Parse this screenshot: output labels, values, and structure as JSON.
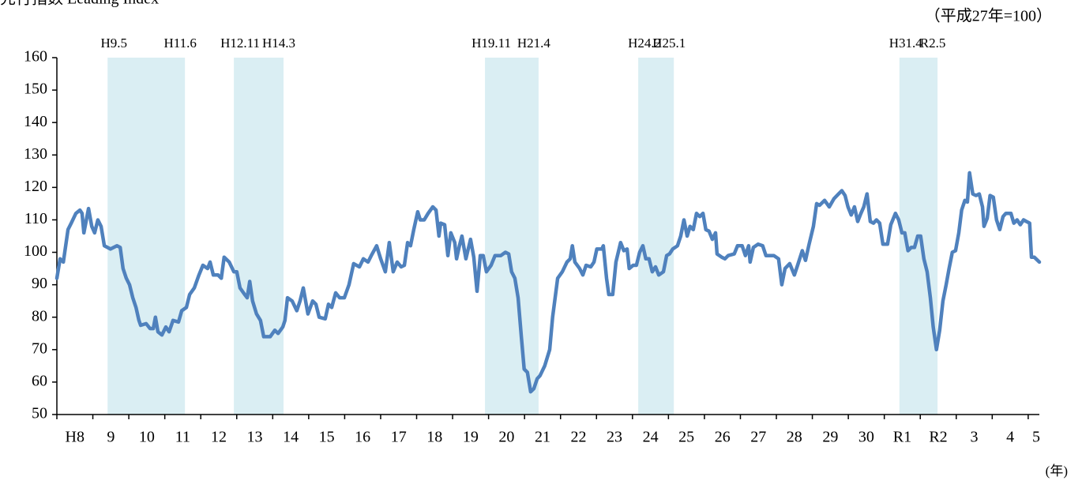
{
  "chart_data": {
    "type": "line",
    "title": "先行指数 Leading Index",
    "unit_label": "（平成27年=100）",
    "x_axis_label": "(年)",
    "color": "#4f81bd",
    "shade_color": "#daeef3",
    "xlim": [
      1996,
      2023.31
    ],
    "xticks": [
      {
        "value": 1996,
        "label": "H8"
      },
      {
        "value": 1997,
        "label": "9"
      },
      {
        "value": 1998,
        "label": "10"
      },
      {
        "value": 1999,
        "label": "11"
      },
      {
        "value": 2000,
        "label": "12"
      },
      {
        "value": 2001,
        "label": "13"
      },
      {
        "value": 2002,
        "label": "14"
      },
      {
        "value": 2003,
        "label": "15"
      },
      {
        "value": 2004,
        "label": "16"
      },
      {
        "value": 2005,
        "label": "17"
      },
      {
        "value": 2006,
        "label": "18"
      },
      {
        "value": 2007,
        "label": "19"
      },
      {
        "value": 2008,
        "label": "20"
      },
      {
        "value": 2009,
        "label": "21"
      },
      {
        "value": 2010,
        "label": "22"
      },
      {
        "value": 2011,
        "label": "23"
      },
      {
        "value": 2012,
        "label": "24"
      },
      {
        "value": 2013,
        "label": "25"
      },
      {
        "value": 2014,
        "label": "26"
      },
      {
        "value": 2015,
        "label": "27"
      },
      {
        "value": 2016,
        "label": "28"
      },
      {
        "value": 2017,
        "label": "29"
      },
      {
        "value": 2018,
        "label": "30"
      },
      {
        "value": 2019,
        "label": "R1"
      },
      {
        "value": 2020,
        "label": "R2"
      },
      {
        "value": 2021,
        "label": "3"
      },
      {
        "value": 2022,
        "label": "4"
      },
      {
        "value": 2023,
        "label": "5"
      }
    ],
    "ylim": [
      50,
      160
    ],
    "yticks": [
      50,
      60,
      70,
      80,
      90,
      100,
      110,
      120,
      130,
      140,
      150,
      160
    ],
    "shading": [
      {
        "start": 1997.41,
        "end": 1999.56,
        "start_label": "H9.5",
        "end_label": "H11.6"
      },
      {
        "start": 2000.92,
        "end": 2002.3,
        "start_label": "H12.11",
        "end_label": "H14.3"
      },
      {
        "start": 2007.9,
        "end": 2009.39,
        "start_label": "H19.11",
        "end_label": "H21.4"
      },
      {
        "start": 2012.16,
        "end": 2013.15,
        "start_label": "H24.2",
        "end_label": "H25.1"
      },
      {
        "start": 2019.42,
        "end": 2020.48,
        "start_label": "H31.4",
        "end_label": "R2.5"
      }
    ],
    "x": [
      1996.0,
      1996.09,
      1996.18,
      1996.31,
      1996.4,
      1996.53,
      1996.64,
      1996.7,
      1996.75,
      1996.88,
      1996.97,
      1997.05,
      1997.14,
      1997.23,
      1997.32,
      1997.49,
      1997.67,
      1997.76,
      1997.84,
      1997.93,
      1998.02,
      1998.11,
      1998.2,
      1998.28,
      1998.33,
      1998.48,
      1998.59,
      1998.68,
      1998.74,
      1998.81,
      1998.92,
      1999.03,
      1999.12,
      1999.23,
      1999.38,
      1999.47,
      1999.6,
      1999.69,
      1999.82,
      1999.95,
      2000.06,
      2000.19,
      2000.26,
      2000.35,
      2000.48,
      2000.57,
      2000.65,
      2000.79,
      2000.92,
      2001.0,
      2001.09,
      2001.22,
      2001.29,
      2001.36,
      2001.44,
      2001.55,
      2001.66,
      2001.75,
      2001.93,
      2002.06,
      2002.15,
      2002.28,
      2002.34,
      2002.41,
      2002.54,
      2002.67,
      2002.76,
      2002.85,
      2002.98,
      2003.11,
      2003.2,
      2003.29,
      2003.46,
      2003.55,
      2003.64,
      2003.75,
      2003.86,
      2003.99,
      2004.12,
      2004.25,
      2004.41,
      2004.52,
      2004.65,
      2004.74,
      2004.89,
      2005.0,
      2005.13,
      2005.24,
      2005.35,
      2005.46,
      2005.57,
      2005.66,
      2005.75,
      2005.83,
      2005.92,
      2006.03,
      2006.1,
      2006.21,
      2006.32,
      2006.45,
      2006.54,
      2006.62,
      2006.67,
      2006.78,
      2006.87,
      2006.95,
      2007.06,
      2007.11,
      2007.19,
      2007.26,
      2007.37,
      2007.5,
      2007.59,
      2007.68,
      2007.77,
      2007.85,
      2007.94,
      2008.07,
      2008.18,
      2008.34,
      2008.47,
      2008.56,
      2008.64,
      2008.73,
      2008.82,
      2008.91,
      2008.99,
      2009.08,
      2009.17,
      2009.26,
      2009.35,
      2009.43,
      2009.56,
      2009.7,
      2009.78,
      2009.92,
      2010.05,
      2010.18,
      2010.27,
      2010.33,
      2010.4,
      2010.53,
      2010.62,
      2010.71,
      2010.84,
      2010.93,
      2011.01,
      2011.15,
      2011.19,
      2011.28,
      2011.34,
      2011.45,
      2011.54,
      2011.67,
      2011.76,
      2011.85,
      2011.91,
      2012.02,
      2012.11,
      2012.2,
      2012.29,
      2012.37,
      2012.46,
      2012.55,
      2012.64,
      2012.73,
      2012.86,
      2012.95,
      2013.03,
      2013.12,
      2013.25,
      2013.34,
      2013.43,
      2013.52,
      2013.6,
      2013.69,
      2013.78,
      2013.87,
      2013.96,
      2014.04,
      2014.13,
      2014.22,
      2014.31,
      2014.35,
      2014.48,
      2014.57,
      2014.66,
      2014.83,
      2014.92,
      2015.05,
      2015.14,
      2015.23,
      2015.27,
      2015.36,
      2015.49,
      2015.62,
      2015.71,
      2015.93,
      2016.06,
      2016.15,
      2016.24,
      2016.37,
      2016.5,
      2016.59,
      2016.72,
      2016.81,
      2016.9,
      2017.03,
      2017.12,
      2017.2,
      2017.34,
      2017.47,
      2017.6,
      2017.73,
      2017.82,
      2017.91,
      2017.99,
      2018.08,
      2018.17,
      2018.26,
      2018.35,
      2018.43,
      2018.52,
      2018.61,
      2018.7,
      2018.78,
      2018.87,
      2018.96,
      2019.09,
      2019.18,
      2019.31,
      2019.4,
      2019.49,
      2019.57,
      2019.66,
      2019.75,
      2019.84,
      2019.93,
      2020.01,
      2020.1,
      2020.19,
      2020.28,
      2020.36,
      2020.45,
      2020.54,
      2020.63,
      2020.72,
      2020.8,
      2020.89,
      2020.98,
      2021.07,
      2021.15,
      2021.24,
      2021.31,
      2021.37,
      2021.46,
      2021.55,
      2021.64,
      2021.73,
      2021.77,
      2021.86,
      2021.94,
      2022.03,
      2022.12,
      2022.21,
      2022.3,
      2022.38,
      2022.52,
      2022.6,
      2022.69,
      2022.78,
      2022.87,
      2022.95,
      2023.04,
      2023.09,
      2023.17,
      2023.31
    ],
    "values": [
      92,
      98,
      97,
      107,
      109,
      112,
      113,
      112,
      106,
      113.5,
      108,
      106,
      110,
      108,
      102,
      101,
      102,
      101.5,
      95,
      92,
      90,
      86,
      83,
      79,
      77.5,
      78,
      76.5,
      76.5,
      80,
      75.5,
      74.5,
      77,
      75.5,
      79,
      78.5,
      82,
      83,
      87,
      89,
      93,
      96,
      95,
      97,
      93,
      93,
      92,
      98.5,
      97,
      94,
      94,
      89,
      87,
      86,
      91,
      85,
      81,
      79,
      74,
      74,
      76,
      75,
      77,
      79,
      86,
      85,
      82,
      85,
      89,
      81,
      85,
      84,
      80,
      79.5,
      84,
      83,
      87.5,
      86,
      86,
      90,
      96.5,
      95.5,
      98,
      97,
      99,
      102,
      98,
      94,
      103,
      94,
      97,
      95.5,
      96,
      103,
      102,
      107,
      112.5,
      110,
      110,
      112,
      114,
      113,
      105,
      109,
      108.5,
      99,
      106,
      103,
      98,
      102,
      105,
      98,
      104,
      98.5,
      88,
      99,
      99,
      94,
      96,
      99,
      99,
      100,
      99.5,
      94,
      92,
      86,
      74,
      64,
      63,
      57,
      58,
      61,
      62,
      65,
      70,
      80,
      92,
      94,
      97,
      98,
      102,
      97,
      95,
      93,
      96,
      95.5,
      97,
      101,
      101,
      102,
      92,
      87,
      87,
      97,
      103,
      100.5,
      101,
      95,
      96,
      96,
      100,
      102,
      98,
      98,
      94,
      95.5,
      93,
      94,
      99,
      99.5,
      101,
      102,
      105,
      110,
      105,
      108,
      107,
      112,
      111,
      112,
      107,
      106.5,
      104,
      106,
      99.5,
      98.5,
      98,
      99,
      99.5,
      102,
      102,
      99,
      102,
      97,
      101.5,
      102.5,
      102,
      99,
      99,
      98,
      90,
      95,
      96.5,
      93,
      96,
      100.5,
      97.5,
      102,
      108,
      115,
      114.5,
      116,
      114,
      116.5,
      118,
      119,
      117.5,
      114,
      111.5,
      114,
      109.5,
      112,
      114,
      118,
      109.5,
      109,
      110,
      109,
      102.5,
      102.5,
      108.5,
      112,
      110,
      106,
      106,
      100.5,
      101.5,
      101.5,
      105,
      105,
      98,
      94,
      86,
      77,
      70,
      76,
      85,
      90,
      95,
      100,
      100.5,
      106,
      113,
      116,
      115.5,
      124.5,
      118,
      117.5,
      118,
      114,
      108,
      110.5,
      117.5,
      117,
      110,
      107,
      111,
      112,
      112,
      109,
      110,
      108.5,
      110,
      109.5,
      109,
      98.5,
      98.5,
      97
    ]
  }
}
